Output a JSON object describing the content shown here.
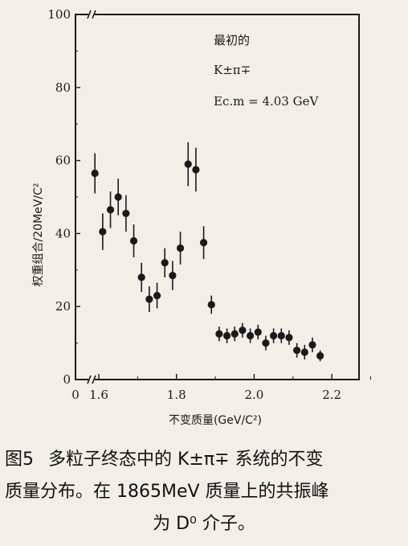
{
  "chart_data": {
    "type": "scatter",
    "xlabel": "不变质量(GeV/C²)",
    "ylabel": "权重组合/20MeV/C²",
    "xlim": [
      1.54,
      2.27
    ],
    "ylim": [
      0,
      100
    ],
    "x_ticks": [
      {
        "value": 1.6,
        "label": "1.6"
      },
      {
        "value": 1.8,
        "label": "1.8"
      },
      {
        "value": 2.0,
        "label": "2.0"
      },
      {
        "value": 2.2,
        "label": "2.2"
      }
    ],
    "x_zero_label": "0",
    "y_ticks": [
      {
        "value": 0,
        "label": "0"
      },
      {
        "value": 20,
        "label": "20"
      },
      {
        "value": 40,
        "label": "40"
      },
      {
        "value": 60,
        "label": "60"
      },
      {
        "value": 80,
        "label": "80"
      },
      {
        "value": 100,
        "label": "100"
      }
    ],
    "grid": false,
    "legend": "top-right",
    "annotation_lines": [
      "最初的",
      "K±π∓",
      "Ec.m = 4.03 GeV"
    ],
    "points": [
      {
        "x": 1.59,
        "y": 56.5,
        "err": 5.5
      },
      {
        "x": 1.61,
        "y": 40.5,
        "err": 5.0
      },
      {
        "x": 1.63,
        "y": 46.5,
        "err": 5.0
      },
      {
        "x": 1.65,
        "y": 50.0,
        "err": 5.0
      },
      {
        "x": 1.67,
        "y": 45.5,
        "err": 5.0
      },
      {
        "x": 1.69,
        "y": 38.0,
        "err": 4.5
      },
      {
        "x": 1.71,
        "y": 28.0,
        "err": 4.0
      },
      {
        "x": 1.73,
        "y": 22.0,
        "err": 3.5
      },
      {
        "x": 1.75,
        "y": 23.0,
        "err": 3.5
      },
      {
        "x": 1.77,
        "y": 32.0,
        "err": 4.0
      },
      {
        "x": 1.79,
        "y": 28.5,
        "err": 4.0
      },
      {
        "x": 1.81,
        "y": 36.0,
        "err": 4.5
      },
      {
        "x": 1.83,
        "y": 59.0,
        "err": 6.0
      },
      {
        "x": 1.85,
        "y": 57.5,
        "err": 6.0
      },
      {
        "x": 1.87,
        "y": 37.5,
        "err": 4.5
      },
      {
        "x": 1.89,
        "y": 20.5,
        "err": 2.5
      },
      {
        "x": 1.91,
        "y": 12.5,
        "err": 2.0
      },
      {
        "x": 1.93,
        "y": 12.0,
        "err": 2.0
      },
      {
        "x": 1.95,
        "y": 12.5,
        "err": 2.0
      },
      {
        "x": 1.97,
        "y": 13.5,
        "err": 2.0
      },
      {
        "x": 1.99,
        "y": 12.0,
        "err": 2.0
      },
      {
        "x": 2.01,
        "y": 13.0,
        "err": 2.0
      },
      {
        "x": 2.03,
        "y": 10.0,
        "err": 2.0
      },
      {
        "x": 2.05,
        "y": 12.0,
        "err": 2.0
      },
      {
        "x": 2.07,
        "y": 12.0,
        "err": 2.0
      },
      {
        "x": 2.09,
        "y": 11.5,
        "err": 2.0
      },
      {
        "x": 2.11,
        "y": 8.0,
        "err": 2.0
      },
      {
        "x": 2.13,
        "y": 7.5,
        "err": 2.0
      },
      {
        "x": 2.15,
        "y": 9.5,
        "err": 2.0
      },
      {
        "x": 2.17,
        "y": 6.5,
        "err": 1.5
      }
    ]
  },
  "caption": {
    "line1_prefix": "图5",
    "line1_text": "多粒子终态中的 K±π∓ 系统的不变",
    "line2": "质量分布。在 1865MeV 质量上的共振峰",
    "line3": "为 D⁰ 介子。"
  },
  "colors": {
    "ink": "#1a1a1a",
    "paper": "#f1efe8"
  }
}
